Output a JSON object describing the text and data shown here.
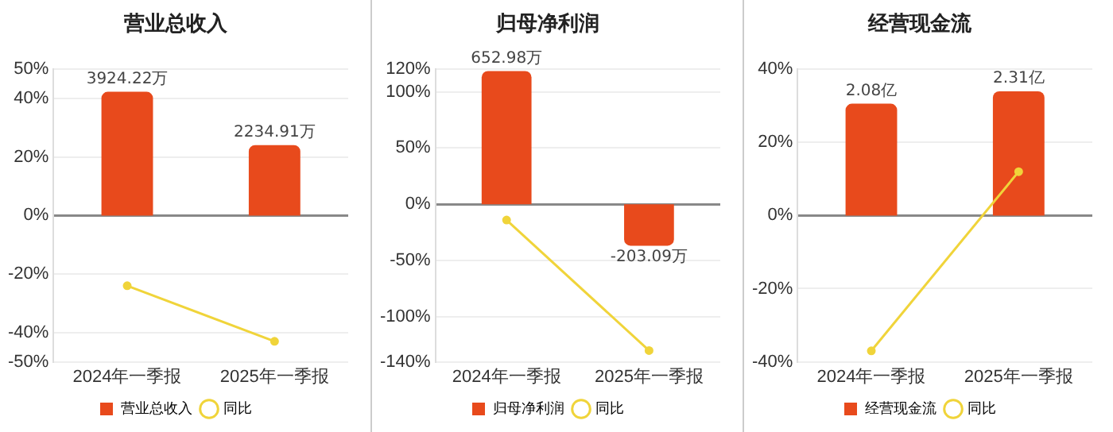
{
  "chart_data": [
    {
      "type": "bar",
      "title": "营业总收入",
      "categories": [
        "2024年一季报",
        "2025年一季报"
      ],
      "series": [
        {
          "name": "营业总收入",
          "axis": "y2",
          "color": "#e84a1c",
          "values": [
            3924.22,
            2234.91
          ],
          "value_labels": [
            "3924.22万",
            "2234.91万"
          ]
        },
        {
          "name": "同比",
          "type": "line",
          "color": "#f0d43a",
          "values": [
            -24,
            -43
          ]
        }
      ],
      "ylim": [
        -50,
        50
      ],
      "yticks": [
        {
          "value": -50,
          "label": "-50%"
        },
        {
          "value": -40,
          "label": "-40%"
        },
        {
          "value": -20,
          "label": "-20%"
        },
        {
          "value": 0,
          "label": "0%"
        },
        {
          "value": 20,
          "label": "20%"
        },
        {
          "value": 40,
          "label": "40%"
        },
        {
          "value": 50,
          "label": "50%"
        }
      ],
      "y2lim": [
        -4640,
        4640
      ],
      "grid": "y",
      "legend": "bottom",
      "marker": "circle"
    },
    {
      "type": "bar",
      "title": "归母净利润",
      "categories": [
        "2024年一季报",
        "2025年一季报"
      ],
      "series": [
        {
          "name": "归母净利润",
          "axis": "y2",
          "color": "#e84a1c",
          "values": [
            652.98,
            -203.09
          ],
          "value_labels": [
            "652.98万",
            "-203.09万"
          ]
        },
        {
          "name": "同比",
          "type": "line",
          "color": "#f0d43a",
          "values": [
            -14,
            -130
          ]
        }
      ],
      "ylim": [
        -140,
        120
      ],
      "yticks": [
        {
          "value": -140,
          "label": "-140%"
        },
        {
          "value": -100,
          "label": "-100%"
        },
        {
          "value": -50,
          "label": "-50%"
        },
        {
          "value": 0,
          "label": "0%"
        },
        {
          "value": 50,
          "label": "50%"
        },
        {
          "value": 100,
          "label": "100%"
        },
        {
          "value": 120,
          "label": "120%"
        }
      ],
      "y2lim": [
        -772,
        662
      ],
      "grid": "y",
      "legend": "bottom",
      "marker": "circle"
    },
    {
      "type": "bar",
      "title": "经营现金流",
      "categories": [
        "2024年一季报",
        "2025年一季报"
      ],
      "series": [
        {
          "name": "经营现金流",
          "axis": "y2",
          "color": "#e84a1c",
          "values": [
            2.08,
            2.31
          ],
          "value_labels": [
            "2.08亿",
            "2.31亿"
          ]
        },
        {
          "name": "同比",
          "type": "line",
          "color": "#f0d43a",
          "values": [
            -37,
            12
          ]
        }
      ],
      "ylim": [
        -40,
        40
      ],
      "yticks": [
        {
          "value": -40,
          "label": "-40%"
        },
        {
          "value": -20,
          "label": "-20%"
        },
        {
          "value": 0,
          "label": "0%"
        },
        {
          "value": 20,
          "label": "20%"
        },
        {
          "value": 40,
          "label": "40%"
        }
      ],
      "y2lim": [
        -2.72,
        2.72
      ],
      "grid": "y",
      "legend": "bottom",
      "marker": "circle"
    }
  ]
}
